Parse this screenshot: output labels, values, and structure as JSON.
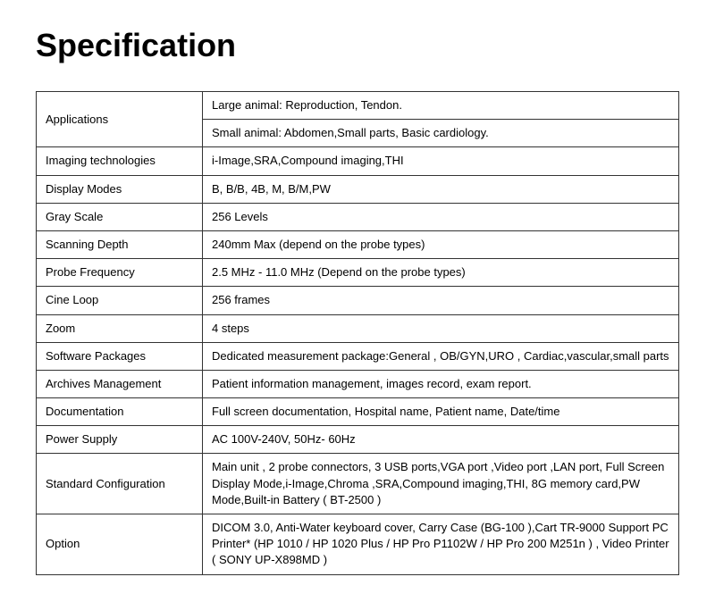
{
  "title": "Specification",
  "rows": {
    "applications_label": "Applications",
    "applications_large": "Large animal: Reproduction, Tendon.",
    "applications_small": "Small animal: Abdomen,Small parts, Basic cardiology.",
    "imaging_label": "Imaging technologies",
    "imaging_value": "i-Image,SRA,Compound imaging,THI",
    "display_label": "Display Modes",
    "display_value": "B, B/B, 4B, M, B/M,PW",
    "grayscale_label": "Gray Scale",
    "grayscale_value": "256 Levels",
    "scandepth_label": "Scanning Depth",
    "scandepth_value": "240mm Max (depend on the probe types)",
    "probefreq_label": "Probe Frequency",
    "probefreq_value": "2.5 MHz - 11.0 MHz (Depend on the probe types)",
    "cineloop_label": "Cine Loop",
    "cineloop_value": "256 frames",
    "zoom_label": "Zoom",
    "zoom_value": "4 steps",
    "software_label": "Software Packages",
    "software_value": "Dedicated measurement package:General ,  OB/GYN,URO , Cardiac,vascular,small parts",
    "archives_label": "Archives Management",
    "archives_value": "Patient information management,  images record, exam report.",
    "documentation_label": "Documentation",
    "documentation_value": "Full screen documentation, Hospital name, Patient name, Date/time",
    "power_label": "Power Supply",
    "power_value": "AC 100V-240V, 50Hz- 60Hz",
    "stdconfig_label": "Standard Configuration",
    "stdconfig_value": "Main unit ,  2 probe connectors, 3 USB ports,VGA port ,Video port ,LAN port, Full Screen Display Mode,i-Image,Chroma ,SRA,Compound imaging,THI, 8G memory card,PW Mode,Built-in Battery ( BT-2500 )",
    "option_label": "Option",
    "option_value": "DICOM 3.0, Anti-Water keyboard cover, Carry Case (BG-100 ),Cart TR-9000 Support PC Printer* (HP 1010 / HP 1020 Plus / HP Pro P1102W / HP Pro 200 M251n  ) , Video Printer ( SONY UP-X898MD )"
  },
  "styles": {
    "title_fontsize": 36,
    "cell_fontsize": 13,
    "text_color": "#000000",
    "border_color": "#333333",
    "background_color": "#ffffff",
    "label_col_width": 165
  }
}
